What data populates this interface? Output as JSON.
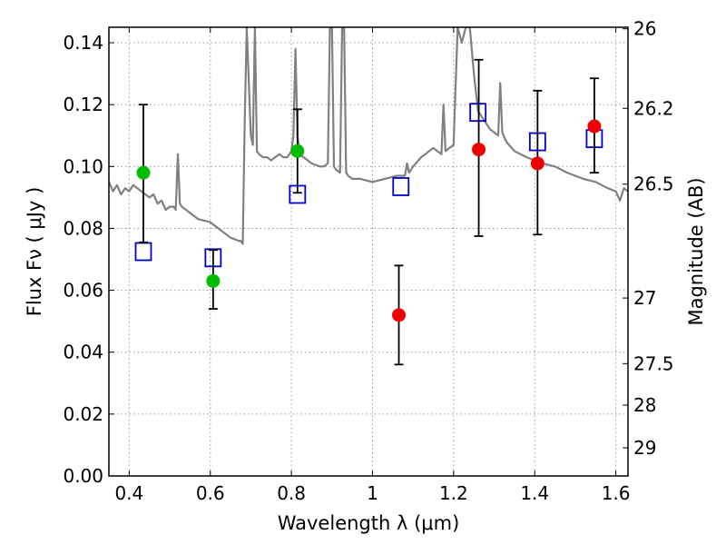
{
  "chart_data": {
    "type": "scatter",
    "title": "",
    "xlabel": "Wavelength  λ (μm)",
    "ylabel": "Flux  Fν  ( μJy )",
    "ylabel_right": "Magnitude (AB)",
    "xlim": [
      0.35,
      1.63
    ],
    "ylim": [
      0.0,
      0.145
    ],
    "grid": true,
    "x_ticks": [
      0.4,
      0.6,
      0.8,
      1.0,
      1.2,
      1.4,
      1.6
    ],
    "x_tick_labels": [
      "0.4",
      "0.6",
      "0.8",
      "1",
      "1.2",
      "1.4",
      "1.6"
    ],
    "y_ticks": [
      0.0,
      0.02,
      0.04,
      0.06,
      0.08,
      0.1,
      0.12,
      0.14
    ],
    "y_tick_labels": [
      "0.00",
      "0.02",
      "0.04",
      "0.06",
      "0.08",
      "0.10",
      "0.12",
      "0.14"
    ],
    "right_ticks": [
      {
        "flux": 0.1445,
        "label": "26"
      },
      {
        "flux": 0.1188,
        "label": "26.2"
      },
      {
        "flux": 0.0943,
        "label": "26.5"
      },
      {
        "flux": 0.0575,
        "label": "27"
      },
      {
        "flux": 0.0363,
        "label": "27.5"
      },
      {
        "flux": 0.0229,
        "label": "28"
      },
      {
        "flux": 0.0091,
        "label": "29"
      }
    ],
    "colors": {
      "spectrum": "#808080",
      "green": "#00bb00",
      "red": "#ee0000",
      "model": "#0000cc",
      "errorbar": "#000000"
    },
    "series": [
      {
        "style": "spectrum",
        "x": [
          0.35,
          0.36,
          0.37,
          0.38,
          0.39,
          0.4,
          0.41,
          0.42,
          0.43,
          0.44,
          0.45,
          0.46,
          0.47,
          0.48,
          0.49,
          0.5,
          0.51,
          0.515,
          0.52,
          0.525,
          0.53,
          0.55,
          0.57,
          0.6,
          0.63,
          0.65,
          0.67,
          0.675,
          0.68,
          0.685,
          0.69,
          0.7,
          0.705,
          0.71,
          0.715,
          0.72,
          0.73,
          0.74,
          0.75,
          0.76,
          0.77,
          0.78,
          0.79,
          0.8,
          0.805,
          0.81,
          0.815,
          0.82,
          0.83,
          0.85,
          0.87,
          0.88,
          0.89,
          0.895,
          0.9,
          0.905,
          0.91,
          0.92,
          0.925,
          0.93,
          0.935,
          0.94,
          0.95,
          0.97,
          1.0,
          1.03,
          1.06,
          1.08,
          1.085,
          1.09,
          1.1,
          1.12,
          1.15,
          1.17,
          1.175,
          1.18,
          1.19,
          1.2,
          1.21,
          1.22,
          1.23,
          1.24,
          1.25,
          1.26,
          1.27,
          1.28,
          1.29,
          1.3,
          1.31,
          1.315,
          1.32,
          1.33,
          1.35,
          1.38,
          1.4,
          1.42,
          1.45,
          1.48,
          1.5,
          1.52,
          1.55,
          1.58,
          1.6,
          1.61,
          1.62,
          1.63
        ],
        "y": [
          0.095,
          0.092,
          0.094,
          0.091,
          0.093,
          0.092,
          0.094,
          0.093,
          0.092,
          0.091,
          0.09,
          0.091,
          0.088,
          0.089,
          0.086,
          0.087,
          0.087,
          0.086,
          0.104,
          0.088,
          0.087,
          0.085,
          0.083,
          0.082,
          0.079,
          0.077,
          0.076,
          0.076,
          0.075,
          0.115,
          0.145,
          0.11,
          0.107,
          0.145,
          0.105,
          0.104,
          0.103,
          0.103,
          0.102,
          0.103,
          0.104,
          0.103,
          0.103,
          0.105,
          0.11,
          0.138,
          0.11,
          0.104,
          0.103,
          0.101,
          0.1,
          0.1,
          0.101,
          0.145,
          0.145,
          0.1,
          0.099,
          0.098,
          0.145,
          0.145,
          0.098,
          0.097,
          0.096,
          0.096,
          0.095,
          0.096,
          0.097,
          0.097,
          0.101,
          0.098,
          0.1,
          0.103,
          0.106,
          0.104,
          0.12,
          0.105,
          0.106,
          0.107,
          0.145,
          0.14,
          0.145,
          0.145,
          0.13,
          0.118,
          0.116,
          0.114,
          0.112,
          0.111,
          0.11,
          0.127,
          0.111,
          0.108,
          0.105,
          0.103,
          0.102,
          0.101,
          0.1,
          0.098,
          0.097,
          0.096,
          0.095,
          0.093,
          0.092,
          0.089,
          0.093,
          0.092
        ]
      },
      {
        "style": "green-points",
        "x": [
          0.435,
          0.607,
          0.815
        ],
        "y": [
          0.098,
          0.063,
          0.105
        ],
        "yerr_low": [
          0.0755,
          0.054,
          0.0915
        ],
        "yerr_high": [
          0.12,
          0.073,
          0.1185
        ]
      },
      {
        "style": "red-points",
        "x": [
          1.065,
          1.262,
          1.407,
          1.547
        ],
        "y": [
          0.052,
          0.1055,
          0.101,
          0.113
        ],
        "yerr_low": [
          0.036,
          0.0775,
          0.078,
          0.098
        ],
        "yerr_high": [
          0.068,
          0.1345,
          0.1245,
          0.1285
        ]
      },
      {
        "style": "model-squares",
        "x": [
          0.435,
          0.607,
          0.815,
          1.07,
          1.26,
          1.407,
          1.547
        ],
        "y": [
          0.0725,
          0.0705,
          0.091,
          0.0935,
          0.1175,
          0.108,
          0.109
        ]
      }
    ]
  }
}
